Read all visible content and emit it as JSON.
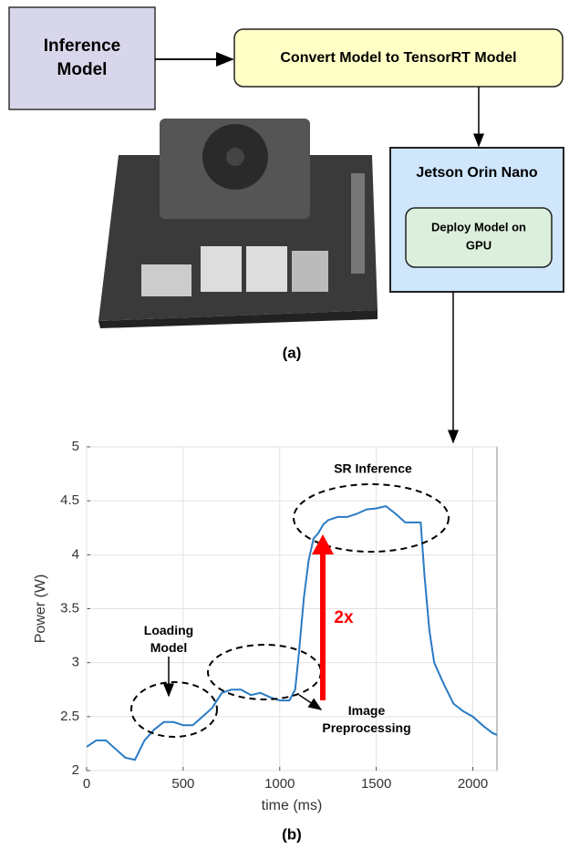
{
  "diagram": {
    "nodes": [
      {
        "label_lines": [
          "Inference",
          "Model"
        ]
      },
      {
        "label_lines": [
          "Convert Model to TensorRT Model"
        ]
      },
      {
        "label_lines": [
          "Jetson Orin Nano"
        ]
      },
      {
        "label_lines": [
          "Deploy Model on",
          "GPU"
        ]
      }
    ],
    "caption_a": "(a)",
    "caption_b": "(b)"
  },
  "chart_data": {
    "type": "line",
    "xlabel": "time (ms)",
    "ylabel": "Power (W)",
    "xlim": [
      0,
      2125
    ],
    "ylim": [
      2,
      5
    ],
    "xticks": [
      0,
      500,
      1000,
      1500,
      2000
    ],
    "yticks": [
      2,
      2.5,
      3,
      3.5,
      4,
      4.5,
      5
    ],
    "grid": true,
    "annotations": {
      "sr": [
        "SR Inference"
      ],
      "loading": [
        "Loading",
        "Model"
      ],
      "preprocessing": [
        "Image",
        "Preprocessing"
      ],
      "factor": [
        "2x"
      ]
    },
    "series": [
      {
        "color": "#2a7bc4",
        "x": [
          0,
          50,
          100,
          150,
          200,
          250,
          300,
          350,
          400,
          450,
          500,
          550,
          600,
          650,
          700,
          750,
          800,
          850,
          900,
          950,
          1000,
          1050,
          1080,
          1100,
          1125,
          1150,
          1175,
          1200,
          1225,
          1250,
          1300,
          1350,
          1400,
          1450,
          1500,
          1550,
          1600,
          1650,
          1700,
          1730,
          1750,
          1775,
          1800,
          1850,
          1900,
          1950,
          2000,
          2050,
          2100,
          2125
        ],
        "values": [
          2.22,
          2.28,
          2.28,
          2.2,
          2.12,
          2.1,
          2.28,
          2.38,
          2.45,
          2.45,
          2.42,
          2.42,
          2.5,
          2.58,
          2.72,
          2.75,
          2.75,
          2.7,
          2.72,
          2.68,
          2.65,
          2.65,
          2.75,
          3.1,
          3.6,
          3.95,
          4.15,
          4.2,
          4.28,
          4.32,
          4.35,
          4.35,
          4.38,
          4.42,
          4.43,
          4.45,
          4.38,
          4.3,
          4.3,
          4.3,
          3.8,
          3.3,
          3.0,
          2.8,
          2.62,
          2.55,
          2.5,
          2.42,
          2.35,
          2.33
        ]
      }
    ]
  }
}
